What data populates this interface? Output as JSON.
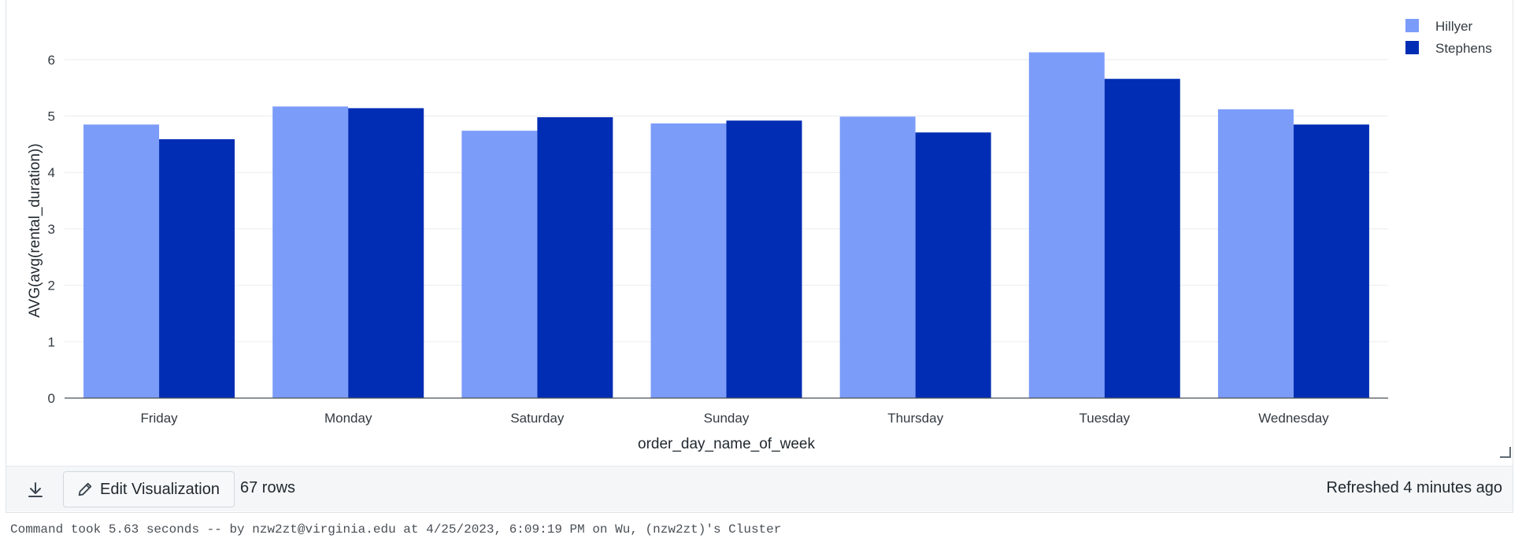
{
  "chart_data": {
    "type": "bar",
    "categories": [
      "Friday",
      "Monday",
      "Saturday",
      "Sunday",
      "Thursday",
      "Tuesday",
      "Wednesday"
    ],
    "series": [
      {
        "name": "Hillyer",
        "values": [
          4.85,
          5.17,
          4.74,
          4.87,
          4.99,
          6.13,
          5.12
        ]
      },
      {
        "name": "Stephens",
        "values": [
          4.59,
          5.14,
          4.98,
          4.92,
          4.71,
          5.66,
          4.85
        ]
      }
    ],
    "colors": [
      "#7b9cf9",
      "#002db3"
    ],
    "xlabel": "order_day_name_of_week",
    "ylabel": "AVG(avg(rental_duration))",
    "ylim": [
      0,
      6.5
    ],
    "yticks": [
      0,
      1,
      2,
      3,
      4,
      5,
      6
    ],
    "grid": true,
    "legend_position": "top-right"
  },
  "footer": {
    "edit_label": "Edit Visualization",
    "rows_label": "67 rows",
    "refreshed_label": "Refreshed 4 minutes ago"
  },
  "command": {
    "text": "Command took 5.63 seconds -- by nzw2zt@virginia.edu at 4/25/2023, 6:09:19 PM on Wu, (nzw2zt)'s Cluster"
  },
  "icons": {
    "download": "download-icon",
    "edit": "pencil-icon",
    "resize": "resize-handle-icon"
  }
}
